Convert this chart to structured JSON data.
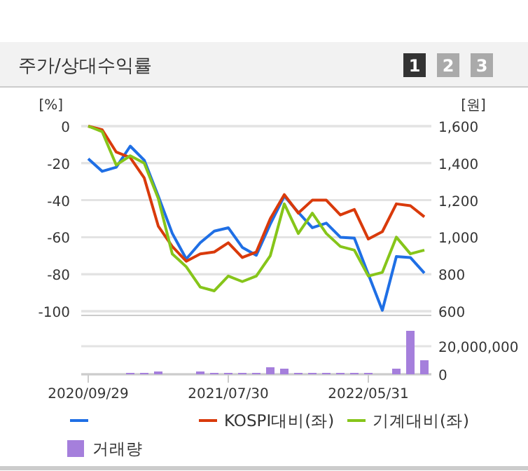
{
  "chart_data": [
    {
      "type": "line",
      "title": "주가/상대수익률",
      "annotations": [
        "1",
        "2",
        "3"
      ],
      "ylabel": "[%]",
      "y2label": "[원]",
      "categories": [
        null,
        null,
        null,
        null,
        null,
        null,
        null,
        null,
        null,
        null,
        null,
        null,
        null,
        null,
        null,
        null,
        null,
        null,
        null,
        null,
        null,
        null,
        null,
        null,
        null
      ],
      "ylim": [
        -100,
        0
      ],
      "yticks": [
        0,
        -20,
        -40,
        -60,
        -80,
        -100
      ],
      "y2lim": [
        600,
        1600
      ],
      "y2ticks": [
        {
          "value": 1600,
          "label": "1,600"
        },
        {
          "value": 1400,
          "label": "1,400"
        },
        {
          "value": 1200,
          "label": "1,200"
        },
        {
          "value": 1000,
          "label": "1,000"
        },
        800,
        600
      ],
      "grid": "y",
      "legend": "bottom",
      "tick_labels": "y",
      "series": [
        {
          "color": "#1f6fe5",
          "axis": "y2",
          "values": [
            1424,
            1356,
            1378,
            1492,
            1416,
            1222,
            1021,
            882,
            970,
            1033,
            1051,
            945,
            902,
            1071,
            1222,
            1134,
            1051,
            1076,
            1000,
            995,
            799,
            605,
            895,
            890,
            806
          ]
        },
        {
          "name": "KOSPI대비(좌)",
          "color": "#d93a0b",
          "values": [
            0,
            -2,
            -14,
            -17,
            -28,
            -54,
            -65,
            -73,
            -69,
            -68,
            -63,
            -71,
            -68,
            -50,
            -37,
            -47,
            -40,
            -40,
            -48,
            -45,
            -61,
            -57,
            -42,
            -43,
            -49
          ]
        },
        {
          "name": "기계대비(좌)",
          "color": "#86c51a",
          "values": [
            0,
            -3,
            -21,
            -16,
            -20,
            -39,
            -69,
            -76,
            -87,
            -89,
            -81,
            -84,
            -81,
            -70,
            -42,
            -58,
            -47,
            -58,
            -65,
            -67,
            -81,
            -79,
            -60,
            -69,
            -67
          ]
        }
      ]
    },
    {
      "type": "bar",
      "categories": [
        "2020/09/29",
        null,
        null,
        null,
        null,
        null,
        null,
        null,
        null,
        null,
        "2021/07/30",
        null,
        null,
        null,
        null,
        null,
        null,
        null,
        null,
        null,
        "2022/05/31",
        null,
        null,
        null,
        null
      ],
      "y2lim": [
        0,
        42000000
      ],
      "y2ticks": [
        0,
        {
          "value": 20000000,
          "label": "20,000,000"
        }
      ],
      "grid": "y",
      "legend": "bottom",
      "series": [
        {
          "name": "거래량",
          "color": "#a57fdc",
          "axis": "y2",
          "values": [
            0,
            0,
            0,
            1000000,
            1000000,
            2000000,
            0,
            0,
            2000000,
            1000000,
            1000000,
            1000000,
            1000000,
            5000000,
            4000000,
            1000000,
            1000000,
            1000000,
            1000000,
            1000000,
            1000000,
            0,
            4000000,
            31000000,
            10000000
          ]
        }
      ]
    }
  ]
}
